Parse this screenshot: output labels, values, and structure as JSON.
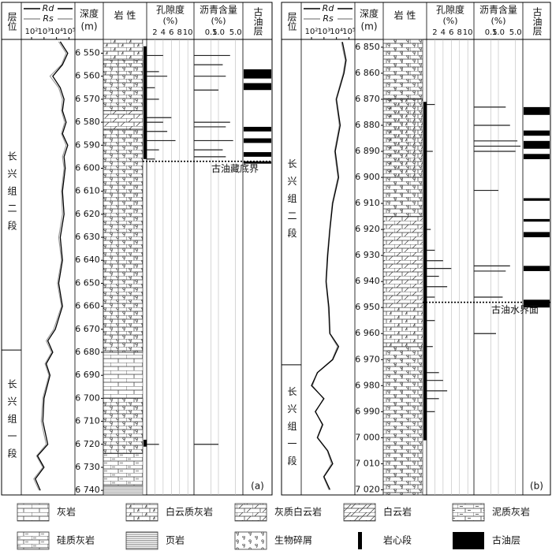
{
  "headers": {
    "formation": "层位",
    "rd": "Rd",
    "rs": "Rs",
    "depth": "深度",
    "depth_unit": "(m)",
    "lithology": "岩 性",
    "porosity": "孔隙度",
    "porosity_unit": "(%)",
    "bitumen": "沥青含量",
    "bitumen_unit": "(%)",
    "oil": "古油层"
  },
  "axes": {
    "resistivity": {
      "scale": "log",
      "xlim": [
        15,
        300000
      ],
      "ticks": [
        {
          "value": 100,
          "label": "10²"
        },
        {
          "value": 1000,
          "label": "10³"
        },
        {
          "value": 10000,
          "label": "10⁴"
        },
        {
          "value": 100000,
          "label": "10⁵"
        }
      ],
      "rd_color": "#000000",
      "rs_color": "#999999"
    },
    "porosity": {
      "scale": "linear",
      "xlim": [
        0,
        11.5
      ],
      "ticks": [
        2,
        4,
        6,
        8,
        10
      ],
      "grid": true
    },
    "bitumen": {
      "scale": "log",
      "xlim": [
        0.1,
        10
      ],
      "ticks": [
        0.5,
        {
          "value": 1,
          "label": "1.0"
        },
        {
          "value": 5,
          "label": "5.0"
        }
      ],
      "grid": true
    }
  },
  "panels": [
    {
      "label": "(a)",
      "depth_lim": [
        6544,
        6742
      ],
      "depth_ticks": [
        {
          "value": 6550,
          "label": "6 550"
        },
        {
          "value": 6560,
          "label": "6 560"
        },
        {
          "value": 6570,
          "label": "6 570"
        },
        {
          "value": 6580,
          "label": "6 580"
        },
        {
          "value": 6590,
          "label": "6 590"
        },
        {
          "value": 6600,
          "label": "6 600"
        },
        {
          "value": 6610,
          "label": "6 610"
        },
        {
          "value": 6620,
          "label": "6 620"
        },
        {
          "value": 6630,
          "label": "6 630"
        },
        {
          "value": 6640,
          "label": "6 640"
        },
        {
          "value": 6650,
          "label": "6 650"
        },
        {
          "value": 6660,
          "label": "6 660"
        },
        {
          "value": 6670,
          "label": "6 670"
        },
        {
          "value": 6680,
          "label": "6 680"
        },
        {
          "value": 6690,
          "label": "6 690"
        },
        {
          "value": 6700,
          "label": "6 700"
        },
        {
          "value": 6710,
          "label": "6 710"
        },
        {
          "value": 6720,
          "label": "6 720"
        },
        {
          "value": 6730,
          "label": "6 730"
        },
        {
          "value": 6740,
          "label": "6 740"
        }
      ],
      "formations": [
        {
          "name": "长兴组二段",
          "top": 6544,
          "base": 6679
        },
        {
          "name": "长兴组一段",
          "top": 6679,
          "base": 6742
        }
      ],
      "resistivity": {
        "depths": [
          6545,
          6550,
          6555,
          6560,
          6565,
          6570,
          6575,
          6580,
          6585,
          6590,
          6595,
          6600,
          6610,
          6620,
          6630,
          6640,
          6650,
          6660,
          6670,
          6675,
          6680,
          6685,
          6690,
          6700,
          6710,
          6720,
          6725,
          6730,
          6735,
          6740
        ],
        "rd": [
          20000,
          80000,
          30000,
          5000,
          20000,
          40000,
          30000,
          60000,
          30000,
          80000,
          40000,
          50000,
          30000,
          40000,
          20000,
          30000,
          15000,
          30000,
          8000,
          2000,
          5000,
          1500,
          3000,
          1000,
          800,
          2000,
          300,
          1000,
          200,
          500
        ],
        "rs": [
          15000,
          60000,
          25000,
          3000,
          15000,
          30000,
          25000,
          45000,
          25000,
          60000,
          30000,
          40000,
          25000,
          30000,
          15000,
          25000,
          12000,
          25000,
          6000,
          1500,
          4000,
          1200,
          2500,
          800,
          600,
          1500,
          250,
          800,
          150,
          400
        ]
      },
      "porosity": {
        "depths": [
          6551,
          6558,
          6560,
          6565,
          6570,
          6578,
          6580,
          6584,
          6588,
          6592,
          6596,
          6720
        ],
        "values": [
          4,
          3,
          5,
          2,
          3,
          6,
          4,
          5,
          7,
          3,
          2,
          3
        ]
      },
      "bitumen": {
        "depths": [
          6551,
          6555,
          6560,
          6566,
          6580,
          6582,
          6588,
          6592,
          6595,
          6720
        ],
        "values": [
          3,
          1.5,
          2,
          1,
          3,
          2,
          4,
          1.5,
          2,
          1
        ]
      },
      "oil_layers": [
        [
          6557,
          6561
        ],
        [
          6563,
          6566
        ],
        [
          6582,
          6584
        ],
        [
          6587,
          6589
        ],
        [
          6593,
          6595
        ],
        [
          6597,
          6598
        ]
      ],
      "core": [
        [
          6547,
          6596
        ],
        [
          6718,
          6721
        ]
      ],
      "boundary": {
        "depth": 6597,
        "label": "古油藏底界"
      },
      "lithology": [
        {
          "top": 6544,
          "base": 6553,
          "fill": [
            "dololime"
          ]
        },
        {
          "top": 6553,
          "base": 6575,
          "fill": [
            "lime",
            "bio"
          ]
        },
        {
          "top": 6575,
          "base": 6583,
          "fill": [
            "limedolo"
          ]
        },
        {
          "top": 6583,
          "base": 6680,
          "fill": [
            "lime",
            "bio"
          ]
        },
        {
          "top": 6680,
          "base": 6700,
          "fill": [
            "lime"
          ]
        },
        {
          "top": 6700,
          "base": 6724,
          "fill": [
            "lime",
            "bio"
          ]
        },
        {
          "top": 6724,
          "base": 6738,
          "fill": [
            "sili"
          ]
        },
        {
          "top": 6738,
          "base": 6742,
          "fill": [
            "shale"
          ]
        }
      ]
    },
    {
      "label": "(b)",
      "depth_lim": [
        6847,
        7022
      ],
      "depth_ticks": [
        {
          "value": 6850,
          "label": "6 850"
        },
        {
          "value": 6860,
          "label": "6 860"
        },
        {
          "value": 6870,
          "label": "6 870"
        },
        {
          "value": 6880,
          "label": "6 880"
        },
        {
          "value": 6890,
          "label": "6 890"
        },
        {
          "value": 6900,
          "label": "6 900"
        },
        {
          "value": 6910,
          "label": "6 910"
        },
        {
          "value": 6920,
          "label": "6 920"
        },
        {
          "value": 6930,
          "label": "6 930"
        },
        {
          "value": 6940,
          "label": "6 940"
        },
        {
          "value": 6950,
          "label": "6 950"
        },
        {
          "value": 6960,
          "label": "6 960"
        },
        {
          "value": 6970,
          "label": "6 970"
        },
        {
          "value": 6980,
          "label": "6 980"
        },
        {
          "value": 6990,
          "label": "6 990"
        },
        {
          "value": 7000,
          "label": "7 000"
        },
        {
          "value": 7010,
          "label": "7 010"
        },
        {
          "value": 7020,
          "label": "7 020"
        }
      ],
      "formations": [
        {
          "name": "长兴组二段",
          "top": 6847,
          "base": 6972
        },
        {
          "name": "长兴组一段",
          "top": 6972,
          "base": 7022
        }
      ],
      "resistivity": {
        "depths": [
          6848,
          6855,
          6860,
          6870,
          6880,
          6890,
          6900,
          6910,
          6920,
          6930,
          6940,
          6950,
          6960,
          6965,
          6970,
          6975,
          6980,
          6985,
          6990,
          6995,
          7000,
          7005,
          7010,
          7015,
          7020
        ],
        "rd": [
          30000,
          60000,
          40000,
          10000,
          20000,
          8000,
          15000,
          5000,
          3000,
          2000,
          1500,
          2500,
          3000,
          15000,
          5000,
          300,
          100,
          1000,
          200,
          800,
          300,
          2000,
          5000,
          1000,
          3000
        ],
        "rs": [
          25000,
          50000,
          35000,
          9000,
          17000,
          7000,
          13000,
          4500,
          2800,
          1800,
          1400,
          2200,
          2800,
          12000,
          4500,
          280,
          120,
          900,
          220,
          700,
          280,
          1800,
          4000,
          900,
          2500
        ]
      },
      "porosity": {
        "depths": [
          6872,
          6890,
          6920,
          6928,
          6932,
          6935,
          6938,
          6942,
          6946,
          6955,
          6965,
          6975,
          6978,
          6982,
          6985,
          6990
        ],
        "values": [
          2,
          1.5,
          1,
          2,
          4,
          6,
          3,
          5,
          2,
          2,
          1.5,
          3,
          4,
          5,
          3,
          2
        ]
      },
      "bitumen": {
        "depths": [
          6873,
          6880,
          6886,
          6888,
          6890,
          6905,
          6934,
          6936,
          6946,
          6960
        ],
        "values": [
          2,
          3,
          6,
          8,
          5,
          1,
          3,
          2,
          1.5,
          0.8
        ]
      },
      "oil_layers": [
        [
          6873,
          6876
        ],
        [
          6882,
          6884
        ],
        [
          6886,
          6889
        ],
        [
          6891,
          6893
        ],
        [
          6908,
          6909
        ],
        [
          6916,
          6917
        ],
        [
          6921,
          6923
        ],
        [
          6934,
          6936
        ],
        [
          6947,
          6950
        ]
      ],
      "core": [
        [
          6871,
          7001
        ]
      ],
      "boundary": {
        "depth": 6948,
        "label": "古油水界面"
      },
      "lithology": [
        {
          "top": 6847,
          "base": 6870,
          "fill": [
            "lime",
            "bio"
          ]
        },
        {
          "top": 6870,
          "base": 6900,
          "fill": [
            "dololime",
            "bio"
          ]
        },
        {
          "top": 6900,
          "base": 6915,
          "fill": [
            "lime",
            "bio"
          ]
        },
        {
          "top": 6915,
          "base": 6950,
          "fill": [
            "limedolo"
          ]
        },
        {
          "top": 6950,
          "base": 6965,
          "fill": [
            "dololime"
          ]
        },
        {
          "top": 6965,
          "base": 7022,
          "fill": [
            "lime",
            "bio"
          ]
        }
      ]
    }
  ],
  "legend": [
    {
      "label": "灰岩",
      "pattern": "lime"
    },
    {
      "label": "白云质灰岩",
      "pattern": "dololime"
    },
    {
      "label": "灰质白云岩",
      "pattern": "limedolo"
    },
    {
      "label": "白云岩",
      "pattern": "dolo"
    },
    {
      "label": "泥质灰岩",
      "pattern": "marl"
    },
    {
      "label": "硅质灰岩",
      "pattern": "sili"
    },
    {
      "label": "页岩",
      "pattern": "shale"
    },
    {
      "label": "生物碎屑",
      "pattern": "bio"
    },
    {
      "label": "岩心段",
      "pattern": "core"
    },
    {
      "label": "古油层",
      "pattern": "oil"
    }
  ]
}
